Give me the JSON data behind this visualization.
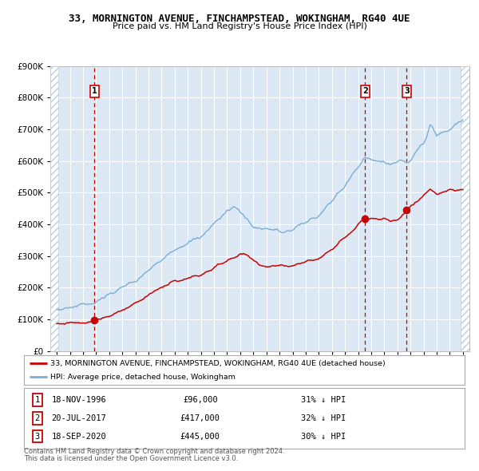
{
  "title_line1": "33, MORNINGTON AVENUE, FINCHAMPSTEAD, WOKINGHAM, RG40 4UE",
  "title_line2": "Price paid vs. HM Land Registry's House Price Index (HPI)",
  "legend_red": "33, MORNINGTON AVENUE, FINCHAMPSTEAD, WOKINGHAM, RG40 4UE (detached house)",
  "legend_blue": "HPI: Average price, detached house, Wokingham",
  "sale1_date": "18-NOV-1996",
  "sale1_price": 96000,
  "sale1_hpi": "31% ↓ HPI",
  "sale1_year": 1996.88,
  "sale2_date": "20-JUL-2017",
  "sale2_price": 417000,
  "sale2_hpi": "32% ↓ HPI",
  "sale2_year": 2017.54,
  "sale3_date": "18-SEP-2020",
  "sale3_price": 445000,
  "sale3_hpi": "30% ↓ HPI",
  "sale3_year": 2020.71,
  "footer1": "Contains HM Land Registry data © Crown copyright and database right 2024.",
  "footer2": "This data is licensed under the Open Government Licence v3.0.",
  "ylim": [
    0,
    900000
  ],
  "yticks": [
    0,
    100000,
    200000,
    300000,
    400000,
    500000,
    600000,
    700000,
    800000,
    900000
  ],
  "plot_bg": "#dce9f5",
  "hatch_color": "#b8cfe0",
  "red_color": "#cc0000",
  "blue_color": "#7aadd4",
  "grid_color": "#ffffff",
  "dashed_color": "#cc0000",
  "xstart": 1994,
  "xend": 2025
}
